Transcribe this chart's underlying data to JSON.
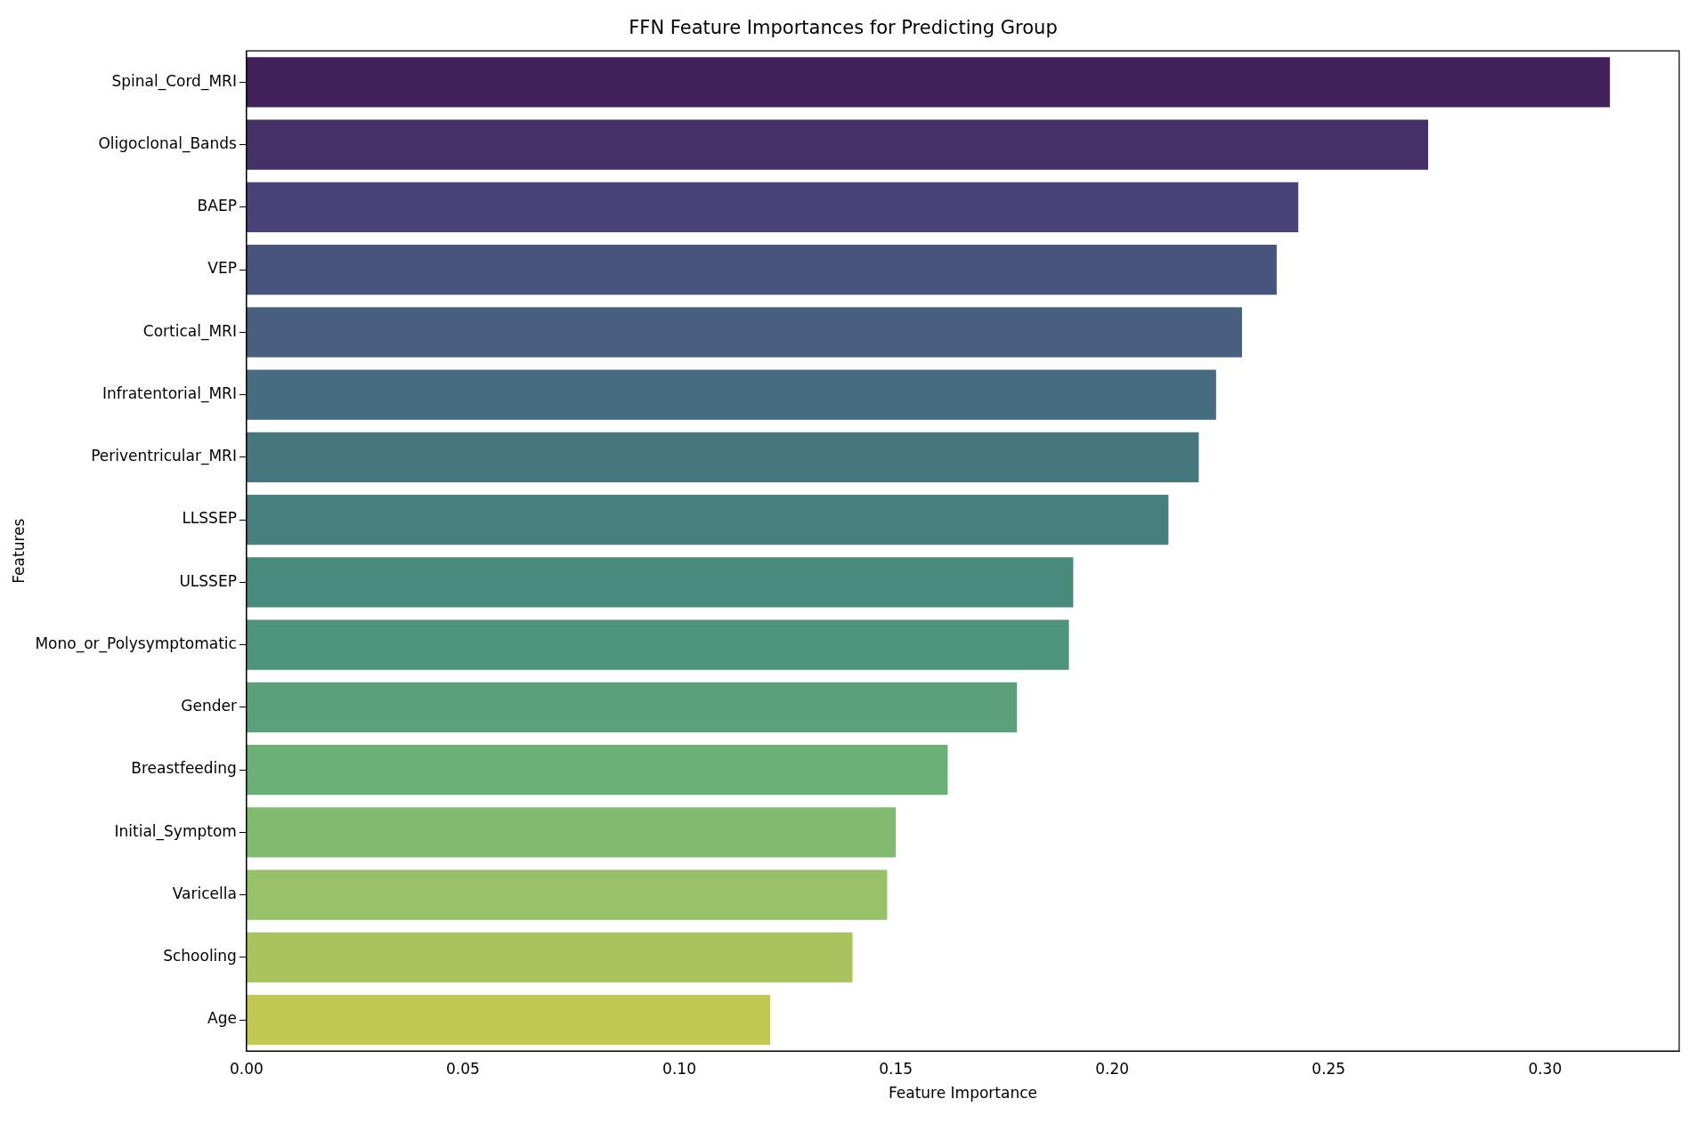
{
  "chart_data": {
    "type": "bar",
    "orientation": "horizontal",
    "title": "FFN Feature Importances for Predicting Group",
    "xlabel": "Feature Importance",
    "ylabel": "Features",
    "categories": [
      "Spinal_Cord_MRI",
      "Oligoclonal_Bands",
      "BAEP",
      "VEP",
      "Cortical_MRI",
      "Infratentorial_MRI",
      "Periventricular_MRI",
      "LLSSEP",
      "ULSSEP",
      "Mono_or_Polysymptomatic",
      "Gender",
      "Breastfeeding",
      "Initial_Symptom",
      "Varicella",
      "Schooling",
      "Age"
    ],
    "values": [
      0.315,
      0.273,
      0.243,
      0.238,
      0.23,
      0.224,
      0.22,
      0.213,
      0.191,
      0.19,
      0.178,
      0.162,
      0.15,
      0.148,
      0.14,
      0.121
    ],
    "colors": [
      "#42205a",
      "#463068",
      "#4a4379",
      "#48547d",
      "#485f7e",
      "#466c7f",
      "#45777f",
      "#477e7e",
      "#488a7c",
      "#4e937b",
      "#5aa07a",
      "#6aaf76",
      "#80bb70",
      "#97c168",
      "#aac45d",
      "#c2c952"
    ],
    "xlim": [
      0,
      0.331
    ],
    "xticks": [
      {
        "value": 0,
        "label": "0.00"
      },
      {
        "value": 0.05,
        "label": "0.05"
      },
      {
        "value": 0.1,
        "label": "0.10"
      },
      {
        "value": 0.15,
        "label": "0.15"
      },
      {
        "value": 0.2,
        "label": "0.20"
      },
      {
        "value": 0.25,
        "label": "0.25"
      },
      {
        "value": 0.3,
        "label": "0.30"
      }
    ],
    "grid": false,
    "legend": false
  }
}
